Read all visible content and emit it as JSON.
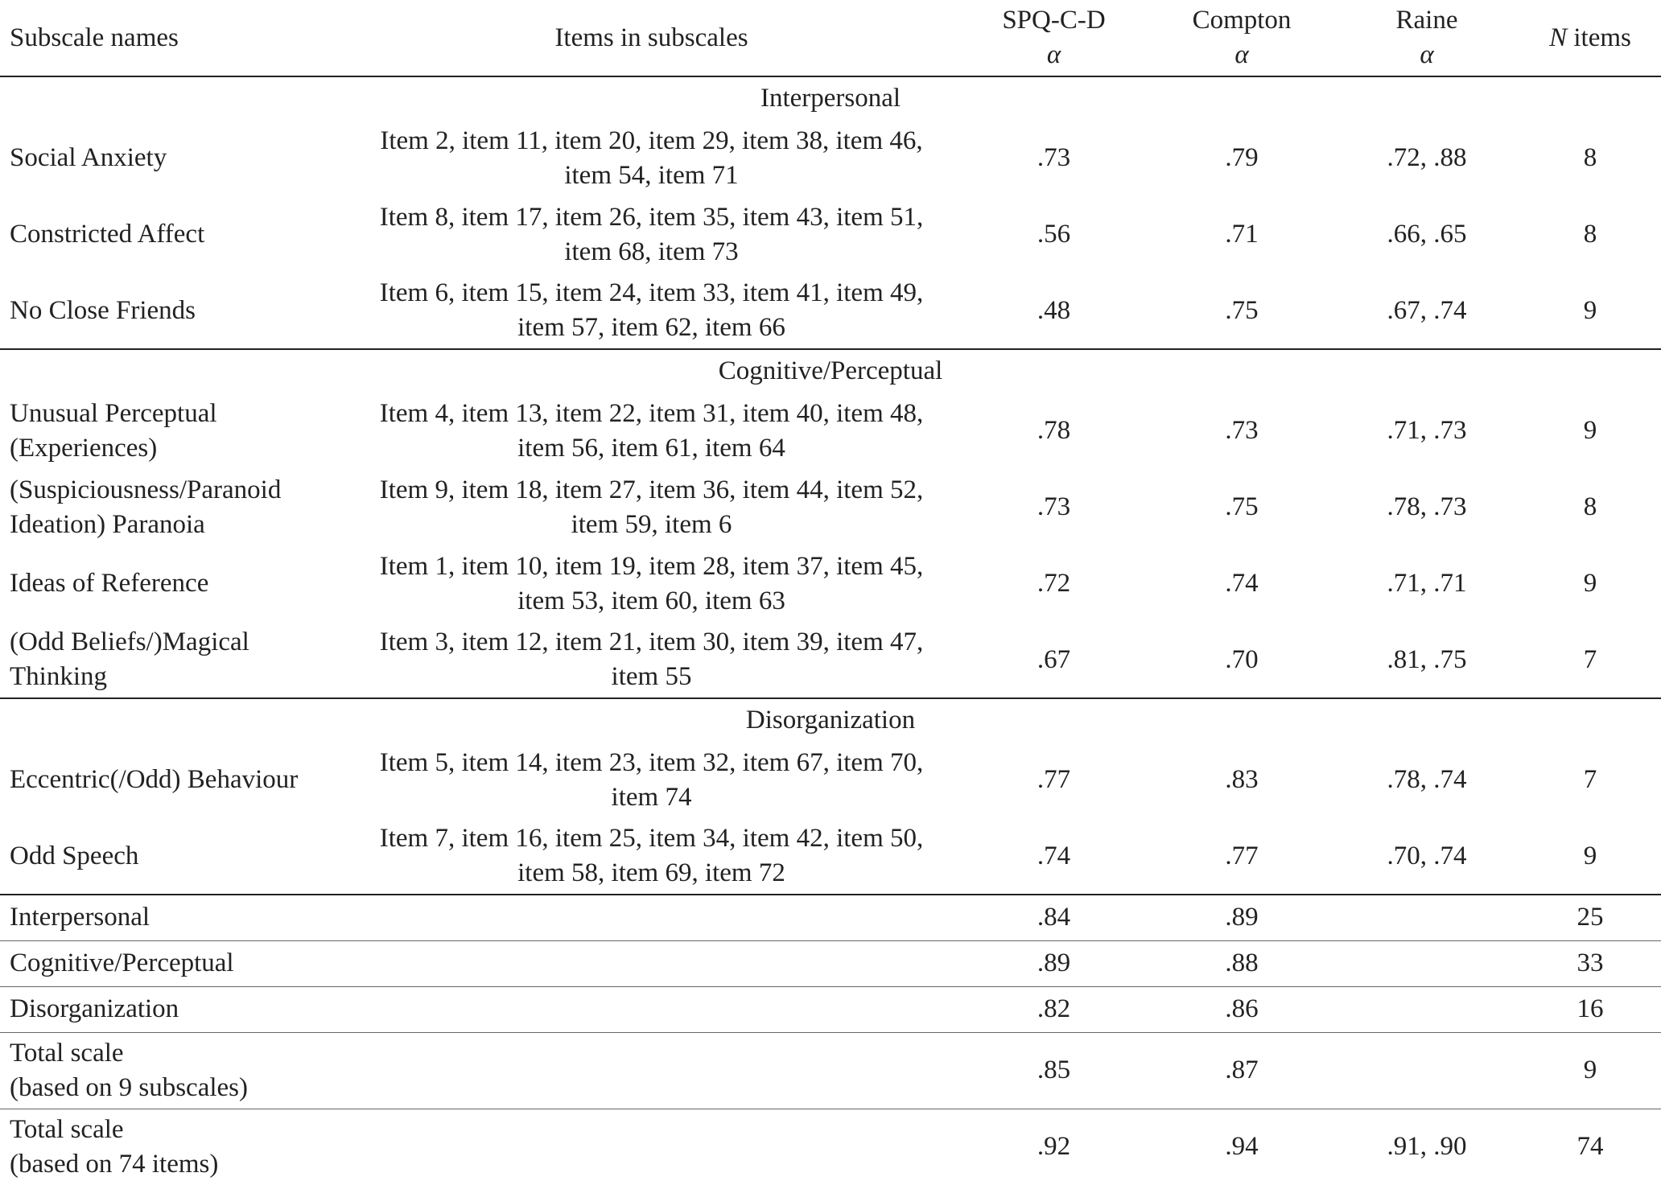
{
  "table": {
    "header": {
      "subscale": [
        "Subscale names"
      ],
      "items": [
        "Items in subscales"
      ],
      "spq": [
        "SPQ-C-D",
        "α"
      ],
      "compton": [
        "Compton",
        "α"
      ],
      "raine": [
        "Raine",
        "α"
      ],
      "n": {
        "italic": "N",
        "text": "items"
      }
    },
    "sections": [
      {
        "heading": "Interpersonal",
        "rows": [
          {
            "name": [
              "Social Anxiety"
            ],
            "items": [
              "Item 2, item 11, item 20, item 29, item 38, item 46,",
              "item 54, item 71"
            ],
            "spq": ".73",
            "compton": ".79",
            "raine": ".72, .88",
            "n": 8
          },
          {
            "name": [
              "Constricted Affect"
            ],
            "items": [
              "Item 8, item 17, item 26, item 35, item 43, item 51,",
              "item 68, item 73"
            ],
            "spq": ".56",
            "compton": ".71",
            "raine": ".66, .65",
            "n": 8
          },
          {
            "name": [
              "No Close Friends"
            ],
            "items": [
              "Item 6, item 15, item 24, item 33, item 41, item 49,",
              "item 57, item 62, item 66"
            ],
            "spq": ".48",
            "compton": ".75",
            "raine": ".67, .74",
            "n": 9
          }
        ]
      },
      {
        "heading": "Cognitive/Perceptual",
        "rows": [
          {
            "name": [
              "Unusual Perceptual",
              "(Experiences)"
            ],
            "items": [
              "Item 4, item 13, item 22, item 31, item 40, item 48,",
              "item 56, item 61, item 64"
            ],
            "spq": ".78",
            "compton": ".73",
            "raine": ".71, .73",
            "n": 9
          },
          {
            "name": [
              "(Suspiciousness/Paranoid",
              "Ideation) Paranoia"
            ],
            "items": [
              "Item 9, item 18, item 27, item 36, item 44, item 52,",
              "item 59, item 6"
            ],
            "spq": ".73",
            "compton": ".75",
            "raine": ".78, .73",
            "n": 8
          },
          {
            "name": [
              "Ideas of Reference"
            ],
            "items": [
              "Item 1, item 10, item 19, item 28, item 37, item 45,",
              "item 53, item 60, item 63"
            ],
            "spq": ".72",
            "compton": ".74",
            "raine": ".71, .71",
            "n": 9
          },
          {
            "name": [
              "(Odd Beliefs/)Magical",
              "Thinking"
            ],
            "items": [
              "Item 3, item 12, item 21, item 30, item 39, item 47,",
              "item 55"
            ],
            "spq": ".67",
            "compton": ".70",
            "raine": ".81, .75",
            "n": 7
          }
        ]
      },
      {
        "heading": "Disorganization",
        "rows": [
          {
            "name": [
              "Eccentric(/Odd) Behaviour"
            ],
            "items": [
              "Item 5, item 14, item 23, item 32, item 67, item 70,",
              "item 74"
            ],
            "spq": ".77",
            "compton": ".83",
            "raine": ".78, .74",
            "n": 7
          },
          {
            "name": [
              "Odd Speech"
            ],
            "items": [
              "Item 7, item 16, item 25, item 34, item 42, item 50,",
              "item 58, item 69, item 72"
            ],
            "spq": ".74",
            "compton": ".77",
            "raine": ".70, .74",
            "n": 9
          }
        ]
      }
    ],
    "summary": [
      {
        "name": [
          "Interpersonal"
        ],
        "spq": ".84",
        "compton": ".89",
        "n": 25
      },
      {
        "name": [
          "Cognitive/Perceptual"
        ],
        "spq": ".89",
        "compton": ".88",
        "n": 33
      },
      {
        "name": [
          "Disorganization"
        ],
        "spq": ".82",
        "compton": ".86",
        "n": 16
      },
      {
        "name": [
          "Total scale",
          "(based on 9 subscales)"
        ],
        "spq": ".85",
        "compton": ".87",
        "n": 9
      },
      {
        "name": [
          "Total scale",
          "(based on 74 items)"
        ],
        "spq": ".92",
        "compton": ".94",
        "raine": ".91, .90",
        "n": 74
      }
    ]
  }
}
